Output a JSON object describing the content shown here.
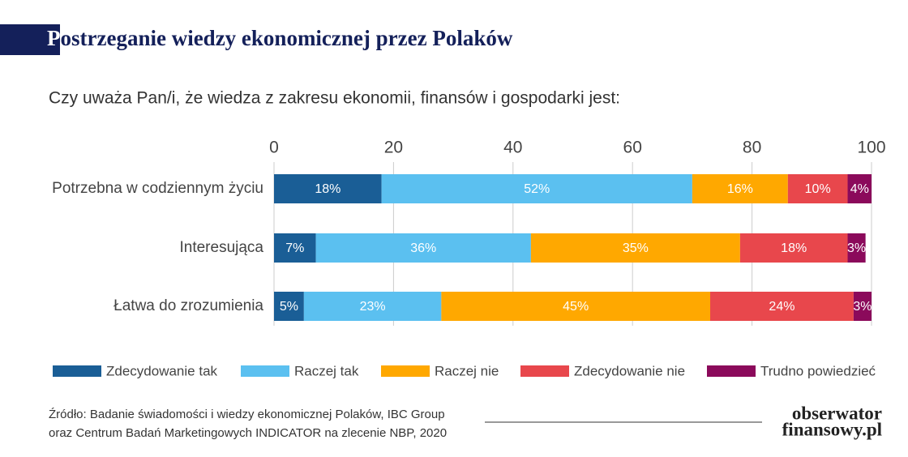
{
  "chart_data": {
    "type": "stacked-bar-horizontal",
    "title": "Postrzeganie wiedzy ekonomicznej przez Polaków",
    "subtitle": "Czy uważa Pan/i, że wiedza z zakresu ekonomii, finansów i gospodarki jest:",
    "categories": [
      "Potrzebna w codziennym życiu",
      "Interesująca",
      "Łatwa do zrozumienia"
    ],
    "series": [
      {
        "name": "Zdecydowanie tak",
        "color": "#1a5e96",
        "values": [
          18,
          7,
          5
        ],
        "value_labels": [
          "18%",
          "7%",
          "5%"
        ]
      },
      {
        "name": "Raczej tak",
        "color": "#5bc0f0",
        "values": [
          52,
          36,
          23
        ],
        "value_labels": [
          "52%",
          "36%",
          "23%"
        ]
      },
      {
        "name": "Raczej nie",
        "color": "#ffa800",
        "values": [
          16,
          35,
          45
        ],
        "value_labels": [
          "16%",
          "35%",
          "45%"
        ]
      },
      {
        "name": "Zdecydowanie nie",
        "color": "#e8474c",
        "values": [
          10,
          18,
          24
        ],
        "value_labels": [
          "10%",
          "18%",
          "24%"
        ]
      },
      {
        "name": "Trudno powiedzieć",
        "color": "#8b0a5b",
        "values": [
          4,
          3,
          3
        ],
        "value_labels": [
          "4%",
          "3%",
          "3%"
        ]
      }
    ],
    "xlim": [
      0,
      100
    ],
    "xticks": [
      0,
      20,
      40,
      60,
      80,
      100
    ],
    "grid": true,
    "legend": "bottom",
    "source": [
      "Źródło: Badanie świadomości i wiedzy ekonomicznej Polaków, IBC Group",
      "oraz Centrum Badań Marketingowych INDICATOR na zlecenie NBP, 2020"
    ],
    "logo": [
      "obserwator",
      "finansowy.pl"
    ]
  }
}
